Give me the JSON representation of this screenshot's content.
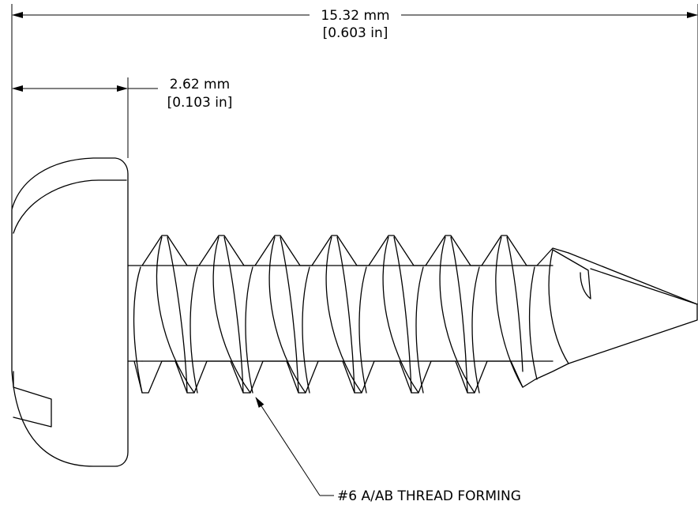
{
  "dimensions": {
    "overall_length": {
      "metric": "15.32 mm",
      "imperial": "[0.603 in]"
    },
    "head_height": {
      "metric": "2.62 mm",
      "imperial": "[0.103 in]"
    }
  },
  "callout": {
    "thread_label": "#6 A/AB THREAD FORMING"
  },
  "colors": {
    "line": "#000000",
    "background": "#ffffff"
  }
}
